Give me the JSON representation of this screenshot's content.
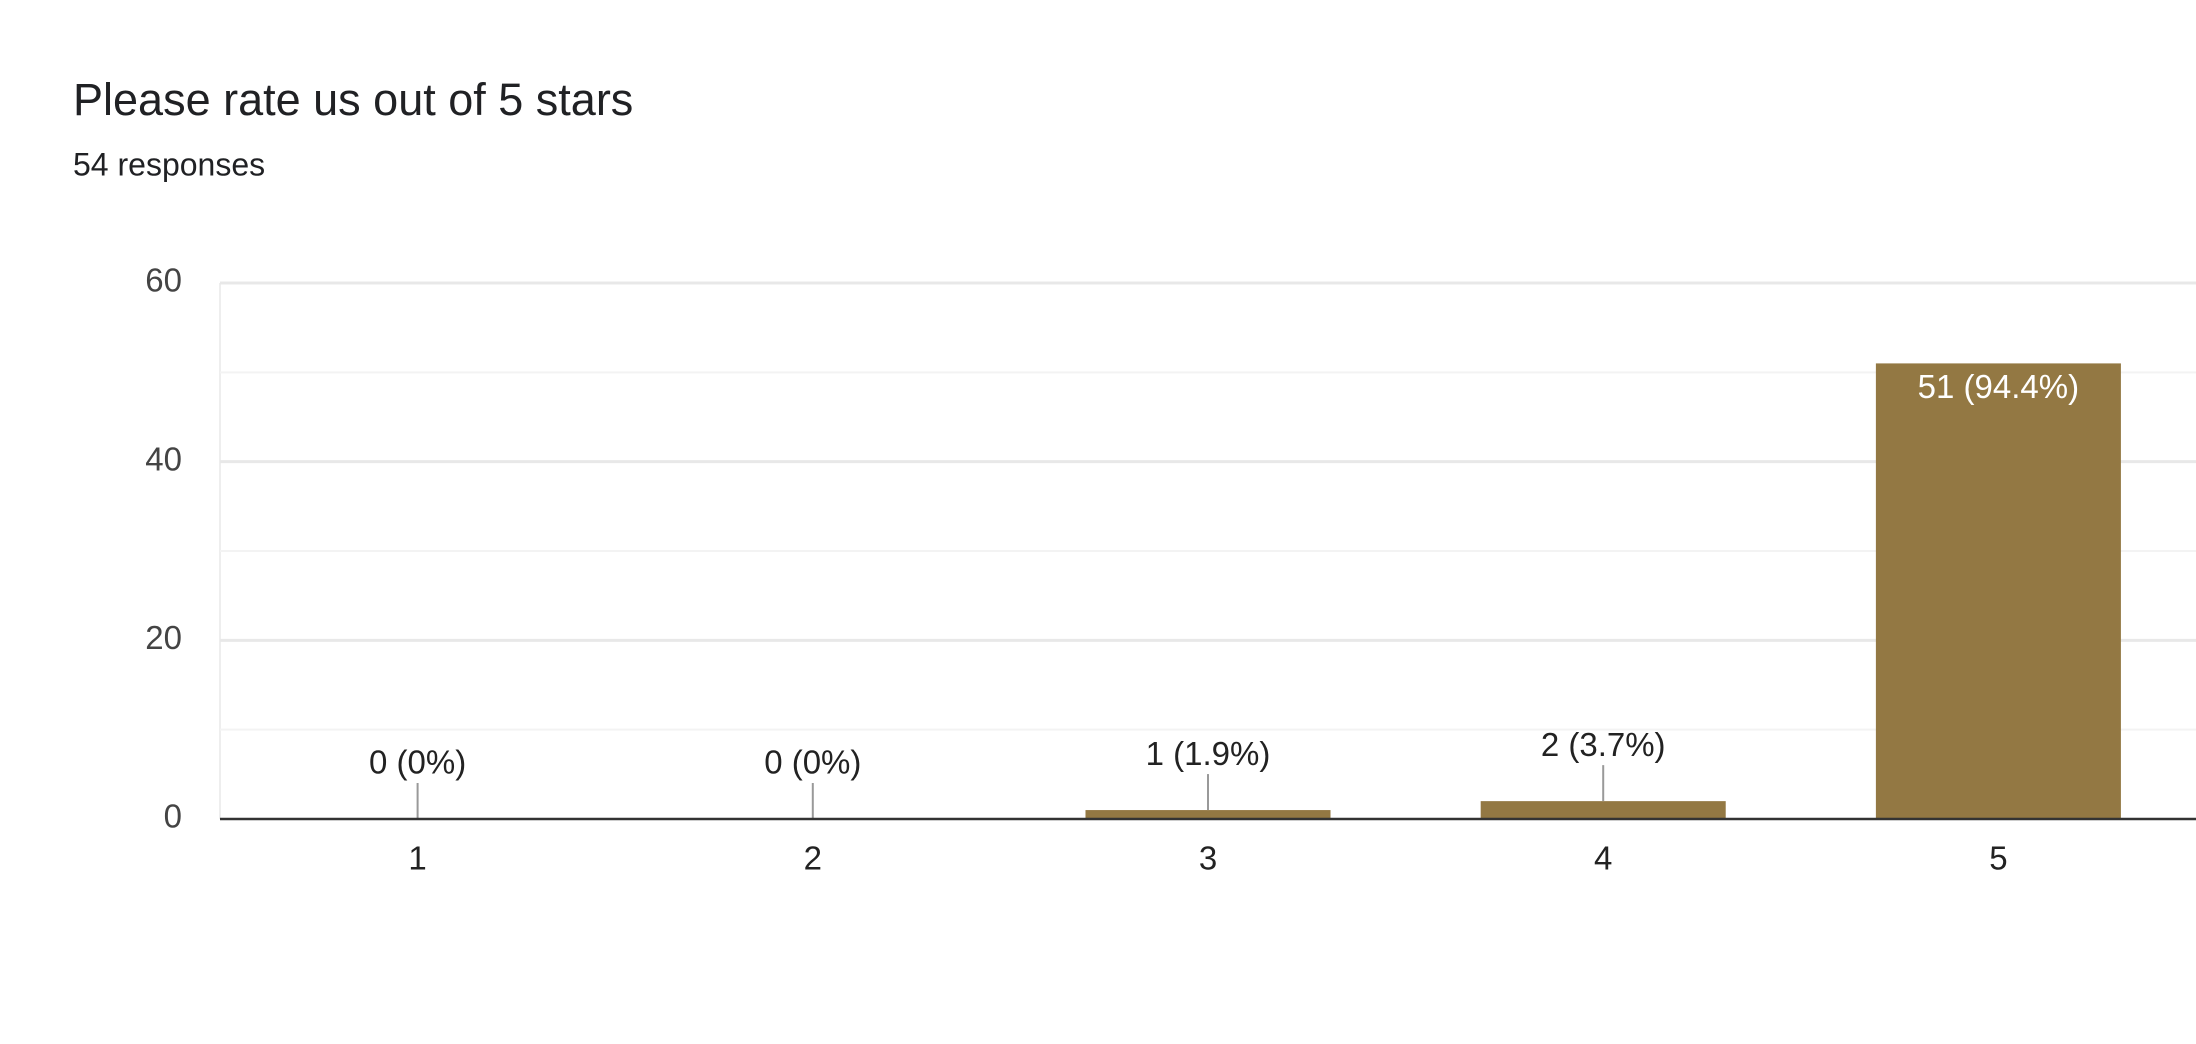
{
  "chart_data": {
    "type": "bar",
    "title": "Please rate us out of 5 stars",
    "subtitle": "54 responses",
    "categories": [
      "1",
      "2",
      "3",
      "4",
      "5"
    ],
    "values": [
      0,
      0,
      1,
      2,
      51
    ],
    "value_labels": [
      "0 (0%)",
      "0 (0%)",
      "1 (1.9%)",
      "2 (3.7%)",
      "51 (94.4%)"
    ],
    "color": "#937843",
    "ylim": [
      0,
      60
    ],
    "yticks": [
      0,
      20,
      40,
      60
    ],
    "minor_yticks": [
      10,
      30,
      50
    ],
    "grid": true
  }
}
